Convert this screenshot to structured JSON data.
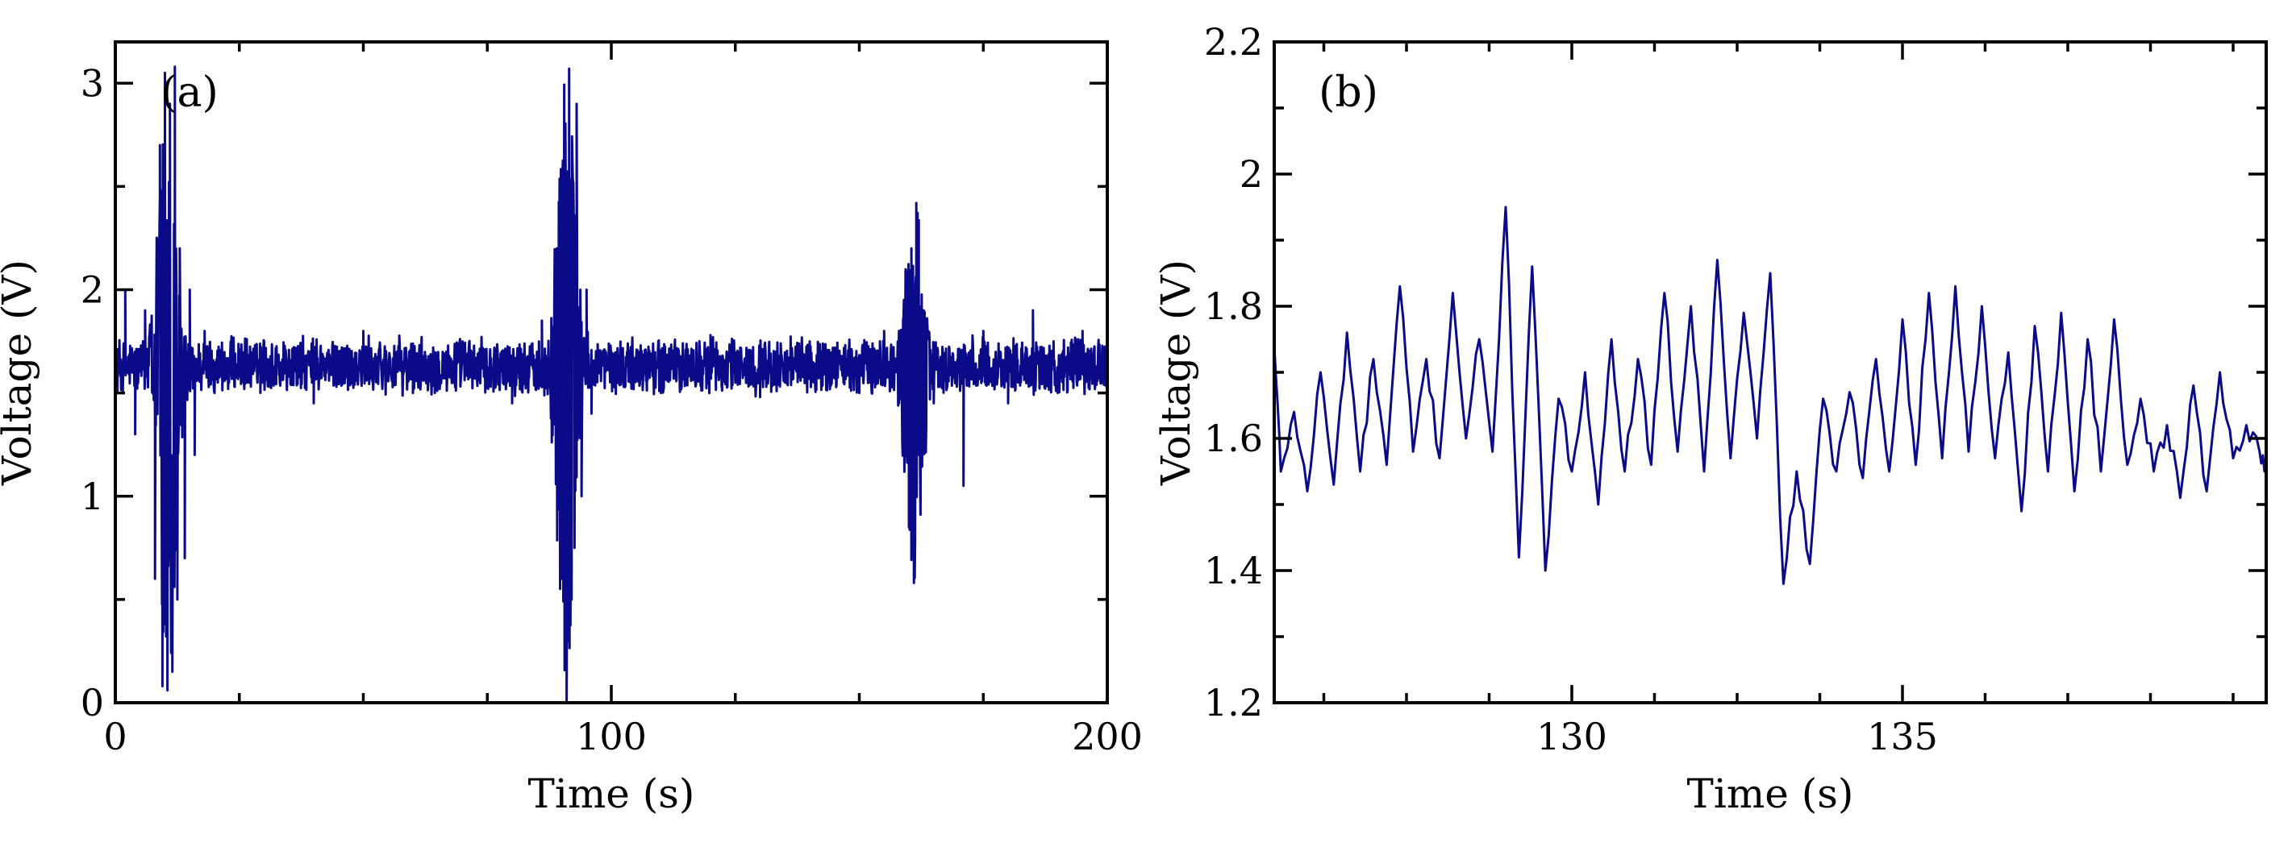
{
  "chart_data": [
    {
      "type": "line",
      "panel_label": "(a)",
      "xlabel": "Time (s)",
      "ylabel": "Voltage (V)",
      "xlim": [
        0,
        200
      ],
      "ylim": [
        0,
        3.2
      ],
      "xticks": [
        0,
        100,
        200
      ],
      "xtick_labels": [
        "0",
        "100",
        "200"
      ],
      "yticks": [
        0,
        1,
        2,
        3
      ],
      "ytick_labels": [
        "0",
        "1",
        "2",
        "3"
      ],
      "grid": false,
      "series_color": "#0b0b8a",
      "baseline_band": [
        1.48,
        1.78
      ],
      "events": [
        {
          "t": 10.5,
          "min": 0.06,
          "max": 3.08
        },
        {
          "t": 91.0,
          "min": 0.0,
          "max": 3.07
        },
        {
          "t": 161.0,
          "min": 0.58,
          "max": 2.42
        }
      ],
      "x": [
        0,
        2,
        4,
        6,
        8,
        9,
        9.5,
        10,
        10.5,
        11,
        11.5,
        12,
        12.5,
        13,
        14,
        15,
        16,
        18,
        20,
        30,
        40,
        50,
        60,
        70,
        80,
        86,
        88,
        89,
        90,
        90.5,
        91,
        91.5,
        92,
        93,
        94,
        95,
        96,
        100,
        110,
        120,
        130,
        140,
        150,
        155,
        158,
        159,
        160,
        160.5,
        161,
        161.5,
        162,
        163,
        165,
        170,
        171,
        175,
        180,
        185,
        190,
        195,
        200
      ],
      "y": [
        1.6,
        2.0,
        1.3,
        1.9,
        0.6,
        2.7,
        0.08,
        3.05,
        0.06,
        2.9,
        0.15,
        3.08,
        0.5,
        2.2,
        0.7,
        2.0,
        1.2,
        1.8,
        1.5,
        1.75,
        1.45,
        1.8,
        1.5,
        1.75,
        1.45,
        1.85,
        1.3,
        2.2,
        0.6,
        2.8,
        0.0,
        3.07,
        0.5,
        2.9,
        1.0,
        2.0,
        1.4,
        1.7,
        1.5,
        1.78,
        1.48,
        1.75,
        1.5,
        1.8,
        1.45,
        1.95,
        0.85,
        2.2,
        0.58,
        2.42,
        1.2,
        1.9,
        1.45,
        1.6,
        1.05,
        1.8,
        1.45,
        1.9,
        1.5,
        1.8,
        1.55
      ]
    },
    {
      "type": "line",
      "panel_label": "(b)",
      "xlabel": "Time (s)",
      "ylabel": "Voltage (V)",
      "xlim": [
        125.5,
        140.5
      ],
      "ylim": [
        1.2,
        2.2
      ],
      "xticks": [
        130,
        135
      ],
      "xtick_labels": [
        "130",
        "135"
      ],
      "yticks": [
        1.2,
        1.4,
        1.6,
        1.8,
        2.0,
        2.2
      ],
      "ytick_labels": [
        "1.2",
        "1.4",
        "1.6",
        "1.8",
        "2",
        "2.2"
      ],
      "grid": false,
      "series_color": "#0b0b8a",
      "x": [
        125.5,
        125.6,
        125.8,
        126.0,
        126.2,
        126.4,
        126.6,
        126.8,
        127.0,
        127.2,
        127.4,
        127.6,
        127.8,
        128.0,
        128.2,
        128.4,
        128.6,
        128.8,
        129.0,
        129.2,
        129.4,
        129.6,
        129.8,
        130.0,
        130.2,
        130.4,
        130.6,
        130.8,
        131.0,
        131.2,
        131.4,
        131.6,
        131.8,
        132.0,
        132.2,
        132.4,
        132.6,
        132.8,
        133.0,
        133.2,
        133.4,
        133.6,
        133.8,
        134.0,
        134.2,
        134.4,
        134.6,
        134.8,
        135.0,
        135.2,
        135.4,
        135.6,
        135.8,
        136.0,
        136.2,
        136.4,
        136.6,
        136.8,
        137.0,
        137.2,
        137.4,
        137.6,
        137.8,
        138.0,
        138.2,
        138.4,
        138.6,
        138.8,
        139.0,
        139.2,
        139.4,
        139.6,
        139.8,
        140.0,
        140.2,
        140.4,
        140.5
      ],
      "y": [
        1.74,
        1.55,
        1.64,
        1.52,
        1.7,
        1.53,
        1.76,
        1.55,
        1.72,
        1.56,
        1.83,
        1.58,
        1.72,
        1.57,
        1.82,
        1.6,
        1.75,
        1.58,
        1.95,
        1.42,
        1.86,
        1.4,
        1.66,
        1.55,
        1.7,
        1.5,
        1.75,
        1.55,
        1.72,
        1.56,
        1.82,
        1.58,
        1.8,
        1.55,
        1.87,
        1.57,
        1.79,
        1.6,
        1.85,
        1.38,
        1.55,
        1.41,
        1.66,
        1.55,
        1.67,
        1.54,
        1.72,
        1.55,
        1.78,
        1.56,
        1.82,
        1.57,
        1.83,
        1.58,
        1.8,
        1.57,
        1.73,
        1.49,
        1.77,
        1.55,
        1.79,
        1.52,
        1.75,
        1.55,
        1.78,
        1.56,
        1.66,
        1.55,
        1.62,
        1.51,
        1.68,
        1.52,
        1.7,
        1.57,
        1.62,
        1.58,
        1.55
      ]
    }
  ]
}
